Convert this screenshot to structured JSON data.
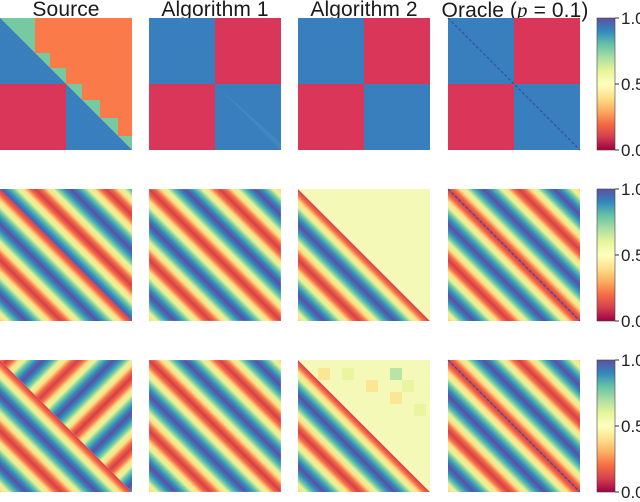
{
  "colors": {
    "red": "#d9365a",
    "orange": "#fb7a4a",
    "teal": "#76c9a1",
    "blue": "#3a7fbd",
    "pale_yellow": "#f5f9b8",
    "diagonal_line": "#2e55a8"
  },
  "colormap": {
    "name": "Spectral",
    "stops": [
      "#9e0142",
      "#d53e4f",
      "#f46d43",
      "#fdae61",
      "#fee08b",
      "#ffffbf",
      "#e6f598",
      "#abdda4",
      "#66c2a5",
      "#3288bd",
      "#5e4fa2"
    ]
  },
  "columns": [
    {
      "title": "Source"
    },
    {
      "title": "Algorithm 1"
    },
    {
      "title": "Algorithm 2"
    },
    {
      "title_pre": "Oracle (",
      "title_var": "p",
      "title_post": " = 0.1)"
    }
  ],
  "colorbar": {
    "tick_labels": [
      "0.0",
      "0.5",
      "1.0"
    ],
    "ticks": [
      0.0,
      0.5,
      1.0
    ]
  },
  "chart_data": [
    {
      "type": "heatmap",
      "row": 1,
      "column": "Source",
      "pattern": "two-block with off-diagonal block values 0.25 (red) and 0.92 (blue); upper triangle shows 0.35 (orange) with 0.7 (teal) band"
    },
    {
      "type": "heatmap",
      "row": 1,
      "column": "Algorithm 1",
      "pattern": "two-block, diagonal blocks 0.92, off-diagonal blocks 0.25"
    },
    {
      "type": "heatmap",
      "row": 1,
      "column": "Algorithm 2",
      "pattern": "two-block, diagonal blocks 0.92, off-diagonal blocks 0.25"
    },
    {
      "type": "heatmap",
      "row": 1,
      "column": "Oracle (p = 0.1)",
      "pattern": "two-block, diagonal blocks 0.92, off-diagonal blocks 0.25"
    },
    {
      "type": "heatmap",
      "row": 2,
      "column": "Source",
      "pattern": "diagonal sinusoidal stripes, lower triangle one phase, upper triangle other phase"
    },
    {
      "type": "heatmap",
      "row": 2,
      "column": "Algorithm 1",
      "pattern": "diagonal sinusoidal stripes, noisy"
    },
    {
      "type": "heatmap",
      "row": 2,
      "column": "Algorithm 2",
      "pattern": "lower triangle stripes; upper triangle near 0.55 (pale yellow)"
    },
    {
      "type": "heatmap",
      "row": 2,
      "column": "Oracle (p = 0.1)",
      "pattern": "diagonal sinusoidal stripes, symmetric"
    },
    {
      "type": "heatmap",
      "row": 3,
      "column": "Source",
      "pattern": "diagonal sinusoidal stripes, lower and upper triangle mirrored"
    },
    {
      "type": "heatmap",
      "row": 3,
      "column": "Algorithm 1",
      "pattern": "diagonal sinusoidal stripes, noisy"
    },
    {
      "type": "heatmap",
      "row": 3,
      "column": "Algorithm 2",
      "pattern": "lower triangle stripes; upper triangle near 0.55 with patchy blocks"
    },
    {
      "type": "heatmap",
      "row": 3,
      "column": "Oracle (p = 0.1)",
      "pattern": "diagonal sinusoidal stripes, symmetric"
    }
  ]
}
